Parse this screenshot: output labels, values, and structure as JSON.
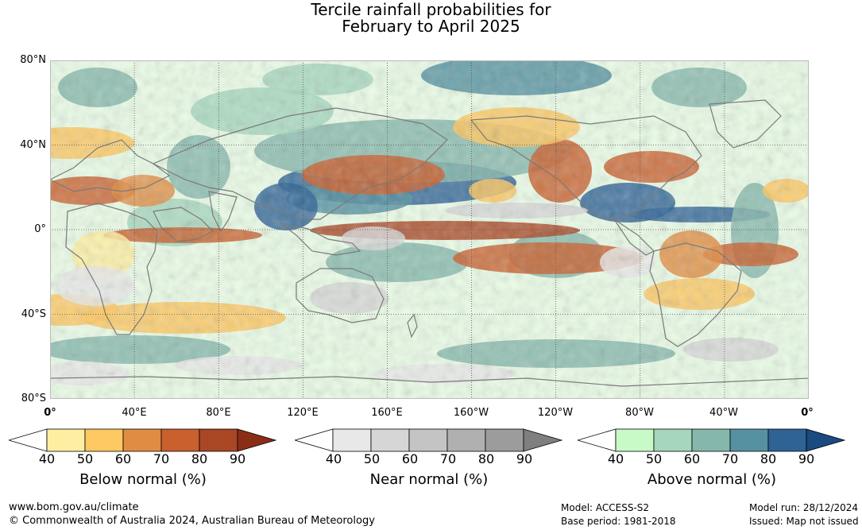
{
  "title": {
    "line1": "Tercile rainfall probabilities for",
    "line2": "February to April 2025"
  },
  "map": {
    "lat_labels": [
      "80°N",
      "40°N",
      "0°",
      "40°S",
      "80°S"
    ],
    "lon_labels": [
      "0°",
      "40°E",
      "80°E",
      "120°E",
      "160°E",
      "160°W",
      "120°W",
      "80°W",
      "40°W",
      "0°"
    ],
    "colors": {
      "land_outline": "#7a7a7a",
      "grid": "#555555"
    }
  },
  "legends": [
    {
      "title": "Below normal (%)",
      "ticks": [
        "40",
        "50",
        "60",
        "70",
        "80",
        "90"
      ],
      "colors": [
        "#ffffff",
        "#fdeea1",
        "#fdc762",
        "#e08d43",
        "#c9602e",
        "#a94724",
        "#8a2d17"
      ]
    },
    {
      "title": "Near normal (%)",
      "ticks": [
        "40",
        "50",
        "60",
        "70",
        "80",
        "90"
      ],
      "colors": [
        "#ffffff",
        "#e8e8e8",
        "#d6d6d6",
        "#c4c4c4",
        "#b0b0b0",
        "#9c9c9c",
        "#7f7f7f"
      ]
    },
    {
      "title": "Above normal (%)",
      "ticks": [
        "40",
        "50",
        "60",
        "70",
        "80",
        "90"
      ],
      "colors": [
        "#ffffff",
        "#c8fac8",
        "#a6d6bc",
        "#86b7ac",
        "#5591a0",
        "#2f6395",
        "#1a4a80"
      ]
    }
  ],
  "footer": {
    "website": "www.bom.gov.au/climate",
    "copyright": "© Commonwealth of Australia 2024, Australian Bureau of Meteorology",
    "model": "Model: ACCESS-S2",
    "base_period": "Base period: 1981-2018",
    "model_run": "Model run: 28/12/2024",
    "issued": "Issued: Map not issued"
  }
}
